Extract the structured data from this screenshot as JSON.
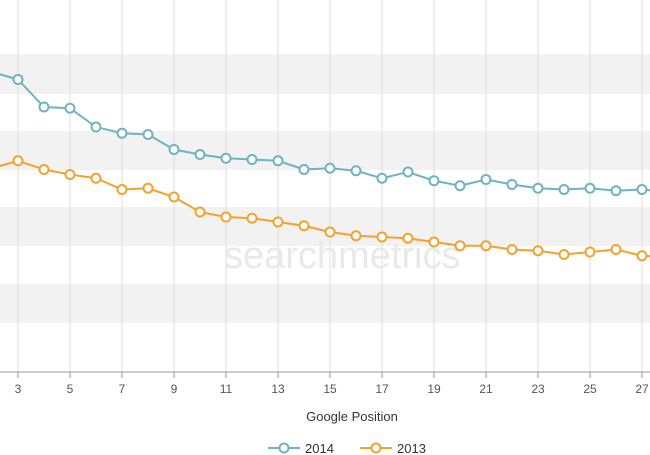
{
  "chart_data": {
    "type": "line",
    "xlabel": "Google Position",
    "x": [
      2,
      3,
      4,
      5,
      6,
      7,
      8,
      9,
      10,
      11,
      12,
      13,
      14,
      15,
      16,
      17,
      18,
      19,
      20,
      21,
      22,
      23,
      24,
      25,
      26,
      27,
      28
    ],
    "x_ticks": [
      3,
      5,
      7,
      9,
      11,
      13,
      15,
      17,
      19,
      21,
      23,
      25,
      27
    ],
    "series": [
      {
        "name": "2014",
        "color": "#6fb3c3",
        "values": [
          20.0,
          19.4,
          17.2,
          17.1,
          15.6,
          15.1,
          15.0,
          13.8,
          13.4,
          13.1,
          13.0,
          12.9,
          12.2,
          12.3,
          12.1,
          11.5,
          12.0,
          11.3,
          10.9,
          11.4,
          11.0,
          10.7,
          10.6,
          10.7,
          10.5,
          10.6,
          10.4
        ]
      },
      {
        "name": "2013",
        "color": "#f5a12e",
        "values": [
          12.3,
          12.9,
          12.2,
          11.8,
          11.5,
          10.6,
          10.7,
          10.0,
          8.8,
          8.4,
          8.3,
          8.0,
          7.7,
          7.2,
          6.9,
          6.8,
          6.7,
          6.4,
          6.1,
          6.1,
          5.8,
          5.7,
          5.4,
          5.6,
          5.8,
          5.3,
          5.2
        ]
      }
    ],
    "grid": "alternating horizontal bands",
    "legend": "bottom-center",
    "watermark": "searchmetrics"
  }
}
